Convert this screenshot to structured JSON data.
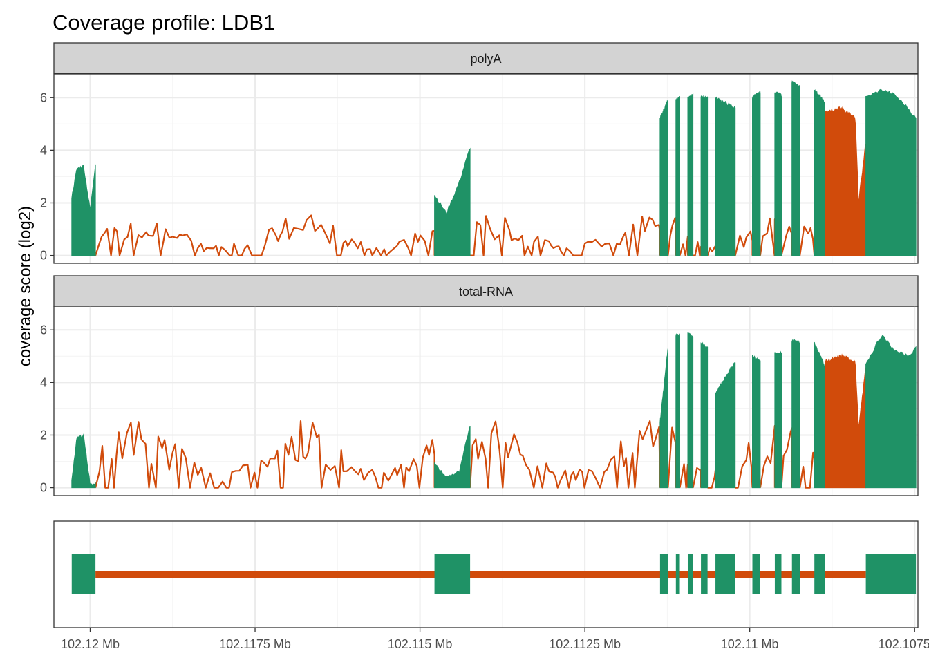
{
  "title": "Coverage profile: LDB1",
  "ylabel": "coverage score (log2)",
  "colors": {
    "exon": "#1f9266",
    "intron": "#d14b0b",
    "strip_bg": "#d3d3d3",
    "grid_major": "#ebebeb",
    "grid_minor": "#f5f5f5",
    "panel_border": "#333333",
    "tick_text": "#4d4d4d"
  },
  "chart_data": {
    "type": "area",
    "x_axis": {
      "reversed": true,
      "range": [
        102.12055,
        102.10745
      ],
      "tick_values": [
        102.12,
        102.1175,
        102.115,
        102.1125,
        102.11,
        102.1075
      ],
      "tick_labels": [
        "102.12 Mb",
        "102.1175 Mb",
        "102.115 Mb",
        "102.1125 Mb",
        "102.11 Mb",
        "102.1075 Mb"
      ]
    },
    "y_axis": {
      "range": [
        -0.3,
        6.9
      ],
      "tick_values": [
        0,
        2,
        4,
        6
      ],
      "tick_labels": [
        "0",
        "2",
        "4",
        "6"
      ]
    },
    "exons": [
      [
        102.12028,
        102.11992
      ],
      [
        102.11478,
        102.11424
      ],
      [
        102.11136,
        102.11124
      ],
      [
        102.11112,
        102.11106
      ],
      [
        102.11094,
        102.11086
      ],
      [
        102.11074,
        102.11064
      ],
      [
        102.11052,
        102.11022
      ],
      [
        102.10996,
        102.10984
      ],
      [
        102.10962,
        102.10952
      ],
      [
        102.10936,
        102.10924
      ],
      [
        102.10902,
        102.10886
      ],
      [
        102.10824,
        102.10748
      ]
    ],
    "introns_highlight": [
      [
        102.10886,
        102.10824
      ]
    ],
    "panels": [
      {
        "name": "polyA",
        "exon_profile": [
          [
            102.12028,
            2.2
          ],
          [
            102.1202,
            3.3
          ],
          [
            102.1201,
            3.4
          ],
          [
            102.12,
            1.7
          ],
          [
            102.11992,
            3.5
          ],
          [
            102.11478,
            2.3
          ],
          [
            102.1146,
            1.6
          ],
          [
            102.1144,
            2.8
          ],
          [
            102.11424,
            4.1
          ],
          [
            102.11136,
            5.2
          ],
          [
            102.11124,
            5.9
          ],
          [
            102.11112,
            5.9
          ],
          [
            102.11106,
            6.0
          ],
          [
            102.11094,
            6.0
          ],
          [
            102.11086,
            6.1
          ],
          [
            102.11074,
            6.0
          ],
          [
            102.11064,
            6.0
          ],
          [
            102.11052,
            6.0
          ],
          [
            102.11022,
            5.6
          ],
          [
            102.10996,
            6.0
          ],
          [
            102.10984,
            6.2
          ],
          [
            102.10962,
            6.2
          ],
          [
            102.10952,
            6.1
          ],
          [
            102.10936,
            6.6
          ],
          [
            102.10924,
            6.4
          ],
          [
            102.10902,
            6.3
          ],
          [
            102.10886,
            5.8
          ],
          [
            102.10824,
            6.0
          ],
          [
            102.108,
            6.3
          ],
          [
            102.1078,
            6.1
          ],
          [
            102.1076,
            5.6
          ],
          [
            102.10748,
            5.2
          ]
        ],
        "intron_base": 1.1,
        "highlight_profile": [
          [
            102.10886,
            5.5
          ],
          [
            102.1086,
            5.6
          ],
          [
            102.1084,
            5.2
          ],
          [
            102.10835,
            2.0
          ],
          [
            102.10824,
            4.3
          ]
        ]
      },
      {
        "name": "total-RNA",
        "exon_profile": [
          [
            102.12028,
            0.3
          ],
          [
            102.1202,
            1.9
          ],
          [
            102.1201,
            2.0
          ],
          [
            102.12,
            0.1
          ],
          [
            102.11992,
            0.2
          ],
          [
            102.11478,
            0.9
          ],
          [
            102.1146,
            0.4
          ],
          [
            102.1144,
            0.6
          ],
          [
            102.11424,
            2.4
          ],
          [
            102.11136,
            2.5
          ],
          [
            102.11124,
            5.3
          ],
          [
            102.11112,
            5.8
          ],
          [
            102.11106,
            5.8
          ],
          [
            102.11094,
            5.9
          ],
          [
            102.11086,
            5.7
          ],
          [
            102.11074,
            5.5
          ],
          [
            102.11064,
            5.3
          ],
          [
            102.11052,
            3.6
          ],
          [
            102.11022,
            4.8
          ],
          [
            102.10996,
            5.0
          ],
          [
            102.10984,
            4.8
          ],
          [
            102.10962,
            5.1
          ],
          [
            102.10952,
            5.1
          ],
          [
            102.10936,
            5.6
          ],
          [
            102.10924,
            5.5
          ],
          [
            102.10902,
            5.5
          ],
          [
            102.10886,
            4.6
          ],
          [
            102.10824,
            4.7
          ],
          [
            102.108,
            5.8
          ],
          [
            102.1078,
            5.2
          ],
          [
            102.1076,
            5.0
          ],
          [
            102.10748,
            5.3
          ]
        ],
        "intron_base": 1.8,
        "highlight_profile": [
          [
            102.10886,
            4.8
          ],
          [
            102.1086,
            5.0
          ],
          [
            102.1084,
            4.8
          ],
          [
            102.10835,
            2.2
          ],
          [
            102.10824,
            4.6
          ]
        ]
      }
    ]
  }
}
